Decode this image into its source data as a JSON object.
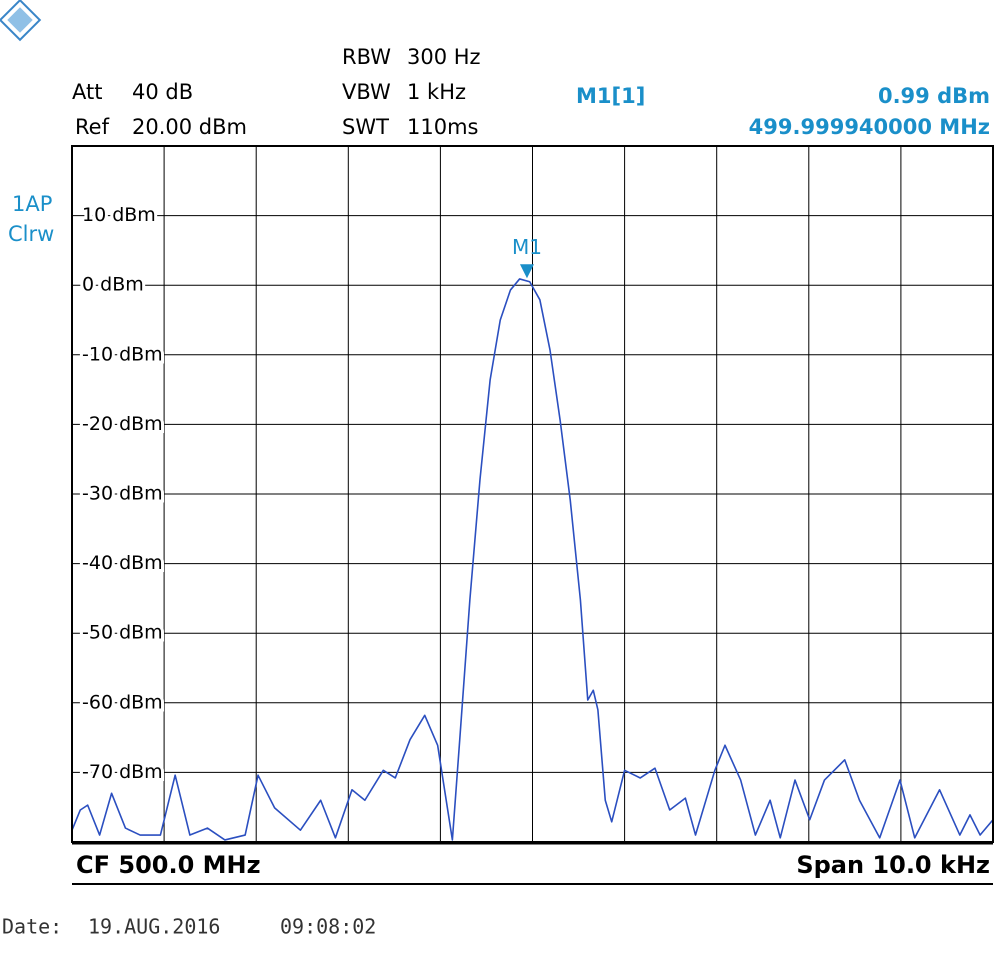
{
  "chart_data": {
    "type": "line",
    "settings": {
      "att_label": "Att",
      "att": "40 dB",
      "ref_label": "Ref",
      "ref": "20.00 dBm",
      "rbw_label": "RBW",
      "rbw": "300 Hz",
      "vbw_label": "VBW",
      "vbw": "1 kHz",
      "swt_label": "SWT",
      "swt": "110ms",
      "trace_mode": "1AP",
      "trace_detector": "Clrw"
    },
    "center_label": "CF 500.0 MHz",
    "span_label": "Span 10.0 kHz",
    "date": {
      "label": "Date:",
      "day": "19.AUG.2016",
      "time": "09:08:02"
    },
    "marker": {
      "name": "M1[1]",
      "label": "M1",
      "x": 499.99994,
      "value": 0.99,
      "value_label": "0.99 dBm",
      "x_label": "499.999940000 MHz"
    },
    "xlim": [
      499.995,
      500.005
    ],
    "xticks": [
      499.995,
      499.996,
      499.997,
      499.998,
      499.999,
      500.0,
      500.001,
      500.002,
      500.003,
      500.004,
      500.005
    ],
    "ylim": [
      -80,
      20
    ],
    "yticks": [
      {
        "value": 10,
        "label": "10 dBm"
      },
      {
        "value": 0,
        "label": "0 dBm"
      },
      {
        "value": -10,
        "label": "-10 dBm"
      },
      {
        "value": -20,
        "label": "-20 dBm"
      },
      {
        "value": -30,
        "label": "-30 dBm"
      },
      {
        "value": -40,
        "label": "-40 dBm"
      },
      {
        "value": -50,
        "label": "-50 dBm"
      },
      {
        "value": -60,
        "label": "-60 dBm"
      },
      {
        "value": -70,
        "label": "-70 dBm"
      }
    ],
    "grid": true,
    "x": [
      499.995,
      499.99509,
      499.99517,
      499.9953,
      499.99543,
      499.99558,
      499.99574,
      499.99596,
      499.99612,
      499.99628,
      499.99647,
      499.99666,
      499.99688,
      499.99702,
      499.9972,
      499.99748,
      499.9977,
      499.99786,
      499.99804,
      499.99818,
      499.99838,
      499.99851,
      499.99867,
      499.99883,
      499.99897,
      499.99913,
      499.99921,
      499.99932,
      499.99943,
      499.99954,
      499.99965,
      499.99976,
      499.99986,
      499.99997,
      500.00008,
      500.00019,
      500.0003,
      500.00041,
      500.00052,
      500.0006,
      500.00066,
      500.00071,
      500.00079,
      500.00086,
      500.001,
      500.00117,
      500.00133,
      500.00149,
      500.00166,
      500.00177,
      500.00198,
      500.00209,
      500.00226,
      500.00242,
      500.00258,
      500.00269,
      500.00285,
      500.00301,
      500.00317,
      500.00339,
      500.00355,
      500.00377,
      500.00399,
      500.00415,
      500.00442,
      500.00464,
      500.00475,
      500.00486,
      500.005
    ],
    "series": [
      {
        "color": "#2b4fc0",
        "values": [
          -78.3,
          -75.4,
          -74.7,
          -79.0,
          -73.0,
          -78.0,
          -79.0,
          -79.0,
          -70.4,
          -79.0,
          -78.0,
          -79.7,
          -79.0,
          -70.4,
          -75.1,
          -78.3,
          -74.0,
          -79.4,
          -72.5,
          -74.0,
          -69.7,
          -70.8,
          -65.3,
          -61.8,
          -66.1,
          -79.7,
          -65.3,
          -45.2,
          -27.9,
          -13.6,
          -5.0,
          -0.7,
          0.9,
          0.5,
          -2.1,
          -9.3,
          -19.4,
          -30.9,
          -45.2,
          -59.6,
          -58.2,
          -61.0,
          -74.0,
          -77.1,
          -69.7,
          -70.8,
          -69.4,
          -75.4,
          -73.7,
          -79.0,
          -69.7,
          -66.1,
          -71.1,
          -79.0,
          -74.0,
          -79.4,
          -71.1,
          -76.8,
          -71.1,
          -68.2,
          -74.0,
          -79.4,
          -71.1,
          -79.4,
          -72.5,
          -79.0,
          -76.1,
          -79.0,
          -76.8
        ]
      }
    ]
  }
}
